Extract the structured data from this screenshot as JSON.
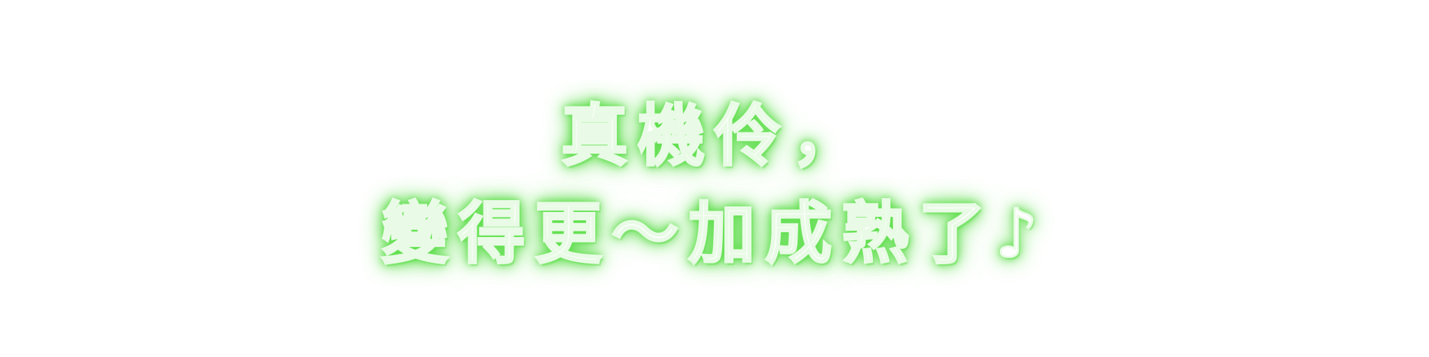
{
  "caption": {
    "line_1": "真機伶，",
    "line_2": "變得更～加成熟了♪"
  },
  "colors": {
    "text": "#ffffff",
    "glow": "#5fe04c",
    "background": "#ffffff"
  }
}
